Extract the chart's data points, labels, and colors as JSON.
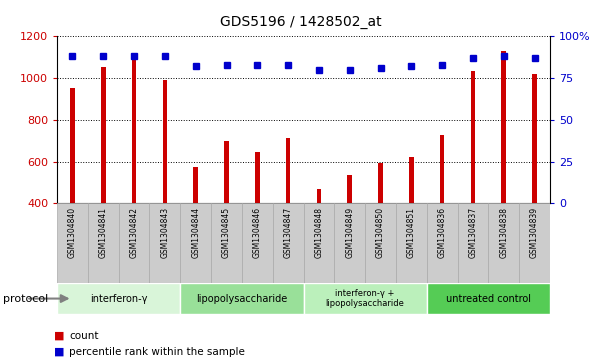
{
  "title": "GDS5196 / 1428502_at",
  "samples": [
    "GSM1304840",
    "GSM1304841",
    "GSM1304842",
    "GSM1304843",
    "GSM1304844",
    "GSM1304845",
    "GSM1304846",
    "GSM1304847",
    "GSM1304848",
    "GSM1304849",
    "GSM1304850",
    "GSM1304851",
    "GSM1304836",
    "GSM1304837",
    "GSM1304838",
    "GSM1304839"
  ],
  "counts": [
    950,
    1055,
    1090,
    990,
    575,
    700,
    648,
    715,
    470,
    535,
    592,
    620,
    728,
    1035,
    1130,
    1020
  ],
  "percentile_ranks": [
    88,
    88,
    88,
    88,
    82,
    83,
    83,
    83,
    80,
    80,
    81,
    82,
    83,
    87,
    88,
    87
  ],
  "groups": [
    {
      "label": "interferon-γ",
      "start": 0,
      "end": 4,
      "color": "#d9f5d9"
    },
    {
      "label": "lipopolysaccharide",
      "start": 4,
      "end": 8,
      "color": "#99e099"
    },
    {
      "label": "interferon-γ +\nlipopolysaccharide",
      "start": 8,
      "end": 12,
      "color": "#bbf0bb"
    },
    {
      "label": "untreated control",
      "start": 12,
      "end": 16,
      "color": "#55cc55"
    }
  ],
  "ylim_left": [
    400,
    1200
  ],
  "ylim_right": [
    0,
    100
  ],
  "bar_color": "#cc0000",
  "dot_color": "#0000cc",
  "tick_label_color_left": "#cc0000",
  "tick_label_color_right": "#0000cc",
  "protocol_label": "protocol",
  "legend_count_label": "count",
  "legend_percentile_label": "percentile rank within the sample",
  "bar_width": 0.15,
  "sample_box_color": "#cccccc",
  "sample_box_edge_color": "#aaaaaa"
}
